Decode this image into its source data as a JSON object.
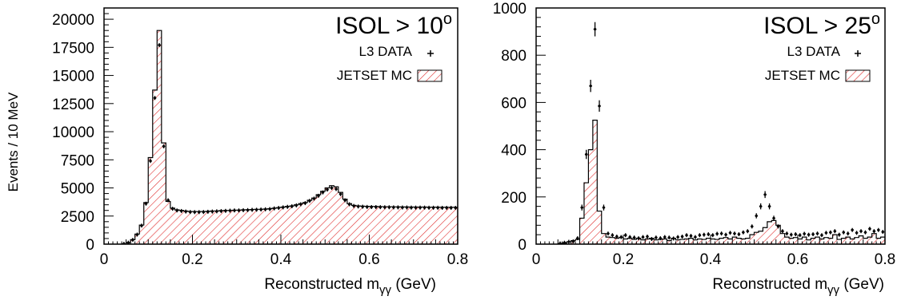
{
  "colors": {
    "mc_hatch": "#e03030",
    "data_marker": "#000000",
    "frame": "#000000"
  },
  "chart_data": [
    {
      "type": "histogram",
      "title": "ISOL > 10",
      "title_superscript": "o",
      "xlabel": "Reconstructed m",
      "xlabel_sub": "γγ",
      "xlabel_unit": " (GeV)",
      "ylabel": "Events / 10 MeV",
      "xlim": [
        0,
        0.8
      ],
      "ylim": [
        0,
        21000
      ],
      "xticks": [
        0,
        0.2,
        0.4,
        0.6,
        0.8
      ],
      "xtick_labels": [
        "0",
        "0.2",
        "0.4",
        "0.6",
        "0.8"
      ],
      "yticks": [
        0,
        2500,
        5000,
        7500,
        10000,
        12500,
        15000,
        17500,
        20000
      ],
      "ytick_labels": [
        "0",
        "2500",
        "5000",
        "7500",
        "10000",
        "12500",
        "15000",
        "17500",
        "20000"
      ],
      "bin_width": 0.01,
      "bin_start": 0.0,
      "legend": {
        "position": "top-right",
        "data_label": "L3 DATA",
        "mc_label": "JETSET MC"
      },
      "series": [
        {
          "name": "JETSET MC",
          "style": "hatched-histogram",
          "values": [
            0,
            0,
            0,
            0,
            40,
            150,
            400,
            900,
            1700,
            3700,
            7700,
            13700,
            19000,
            9000,
            3800,
            3200,
            3050,
            3000,
            2950,
            2900,
            2900,
            2900,
            2900,
            2920,
            2950,
            2950,
            2980,
            3000,
            3000,
            3020,
            3030,
            3050,
            3060,
            3080,
            3100,
            3100,
            3120,
            3150,
            3200,
            3250,
            3300,
            3350,
            3400,
            3500,
            3600,
            3700,
            3900,
            4100,
            4400,
            4700,
            5000,
            5200,
            5100,
            4600,
            4000,
            3600,
            3450,
            3400,
            3380,
            3360,
            3350,
            3350,
            3340,
            3330,
            3330,
            3320,
            3320,
            3310,
            3310,
            3300,
            3300,
            3300,
            3300,
            3290,
            3290,
            3290,
            3280,
            3280,
            3280,
            3280
          ]
        },
        {
          "name": "L3 DATA",
          "style": "points-with-errorbars",
          "values": [
            0,
            0,
            0,
            0,
            30,
            130,
            380,
            850,
            1650,
            3600,
            7400,
            13000,
            17700,
            8700,
            3900,
            3150,
            3000,
            2950,
            2900,
            2860,
            2850,
            2850,
            2860,
            2880,
            2900,
            2920,
            2940,
            2960,
            2980,
            3000,
            3000,
            3020,
            3030,
            3050,
            3060,
            3080,
            3100,
            3120,
            3180,
            3220,
            3270,
            3320,
            3370,
            3450,
            3550,
            3650,
            3850,
            4050,
            4300,
            4600,
            4850,
            5000,
            4900,
            4450,
            3900,
            3550,
            3400,
            3350,
            3330,
            3310,
            3300,
            3300,
            3290,
            3280,
            3280,
            3270,
            3270,
            3260,
            3260,
            3250,
            3250,
            3250,
            3250,
            3240,
            3240,
            3240,
            3230,
            3230,
            3230,
            3230
          ]
        }
      ]
    },
    {
      "type": "histogram",
      "title": "ISOL > 25",
      "title_superscript": "o",
      "xlabel": "Reconstructed m",
      "xlabel_sub": "γγ",
      "xlabel_unit": " (GeV)",
      "ylabel": "",
      "xlim": [
        0,
        0.8
      ],
      "ylim": [
        0,
        1000
      ],
      "xticks": [
        0,
        0.2,
        0.4,
        0.6,
        0.8
      ],
      "xtick_labels": [
        "0",
        "0.2",
        "0.4",
        "0.6",
        "0.8"
      ],
      "yticks": [
        0,
        200,
        400,
        600,
        800,
        1000
      ],
      "ytick_labels": [
        "0",
        "200",
        "400",
        "600",
        "800",
        "1000"
      ],
      "bin_width": 0.01,
      "bin_start": 0.0,
      "legend": {
        "position": "top-right",
        "data_label": "L3 DATA",
        "mc_label": "JETSET MC"
      },
      "series": [
        {
          "name": "JETSET MC",
          "style": "hatched-histogram",
          "values": [
            0,
            0,
            0,
            0,
            0,
            2,
            5,
            10,
            15,
            20,
            110,
            260,
            400,
            525,
            140,
            45,
            30,
            28,
            25,
            28,
            22,
            25,
            20,
            25,
            18,
            22,
            25,
            18,
            20,
            22,
            15,
            25,
            18,
            20,
            22,
            25,
            18,
            22,
            20,
            25,
            22,
            20,
            25,
            28,
            22,
            30,
            25,
            22,
            25,
            40,
            50,
            55,
            70,
            95,
            100,
            80,
            45,
            30,
            25,
            28,
            22,
            30,
            18,
            25,
            30,
            22,
            28,
            25,
            40,
            20,
            25,
            30,
            22,
            28,
            35,
            25,
            30,
            45,
            25,
            30
          ]
        },
        {
          "name": "L3 DATA",
          "style": "points-with-errorbars",
          "values": [
            0,
            0,
            0,
            0,
            0,
            3,
            6,
            10,
            12,
            25,
            155,
            380,
            670,
            910,
            585,
            155,
            45,
            38,
            32,
            30,
            38,
            30,
            28,
            25,
            30,
            32,
            22,
            28,
            25,
            30,
            28,
            24,
            30,
            32,
            38,
            35,
            30,
            38,
            40,
            42,
            38,
            44,
            45,
            40,
            48,
            45,
            42,
            50,
            55,
            75,
            120,
            160,
            210,
            160,
            110,
            75,
            55,
            45,
            40,
            42,
            38,
            44,
            40,
            42,
            45,
            38,
            48,
            50,
            55,
            40,
            50,
            45,
            60,
            48,
            55,
            50,
            65,
            55,
            60,
            52
          ]
        }
      ]
    }
  ]
}
